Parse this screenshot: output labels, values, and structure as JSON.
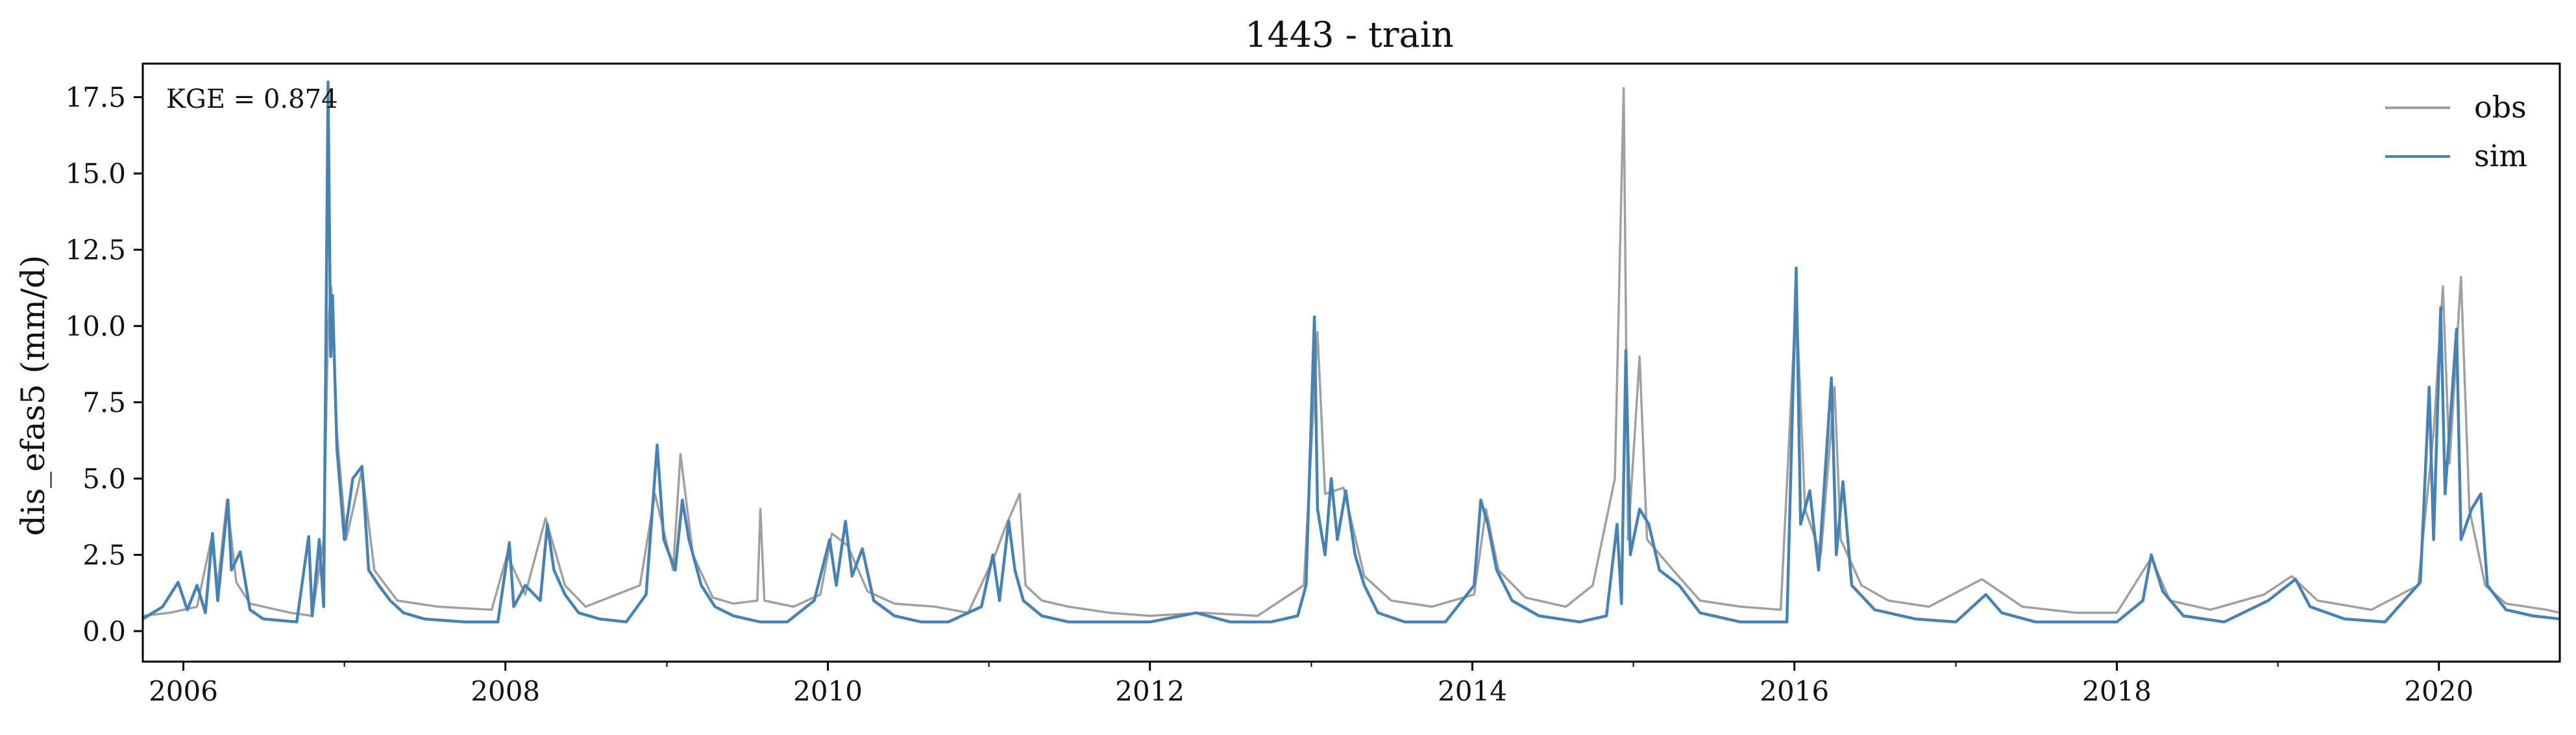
{
  "chart_data": {
    "type": "line",
    "title": "1443 - train",
    "xlabel": "",
    "ylabel": "dis_efas5 (mm/d)",
    "annotation": "KGE = 0.874",
    "xlim": [
      "2005-10-01",
      "2020-10-01"
    ],
    "ylim": [
      -1.0,
      18.6
    ],
    "x_ticks": [
      "2006",
      "2008",
      "2010",
      "2012",
      "2014",
      "2016",
      "2018",
      "2020"
    ],
    "y_ticks": [
      "0.0",
      "2.5",
      "5.0",
      "7.5",
      "10.0",
      "12.5",
      "15.0",
      "17.5"
    ],
    "grid": false,
    "legend_position": "top-right",
    "colors": {
      "obs": "#a0a0a0",
      "sim": "#4682b4"
    },
    "series": [
      {
        "name": "obs",
        "points": [
          [
            "2005-10-01",
            0.5
          ],
          [
            "2005-12-01",
            0.6
          ],
          [
            "2006-02-01",
            0.8
          ],
          [
            "2006-03-05",
            3.0
          ],
          [
            "2006-03-20",
            1.5
          ],
          [
            "2006-04-10",
            4.3
          ],
          [
            "2006-05-01",
            1.6
          ],
          [
            "2006-06-01",
            0.9
          ],
          [
            "2006-09-01",
            0.6
          ],
          [
            "2006-10-20",
            0.5
          ],
          [
            "2006-11-15",
            3.0
          ],
          [
            "2006-11-25",
            10.0
          ],
          [
            "2006-12-02",
            11.3
          ],
          [
            "2006-12-15",
            6.5
          ],
          [
            "2007-01-05",
            3.0
          ],
          [
            "2007-02-10",
            5.3
          ],
          [
            "2007-03-10",
            2.0
          ],
          [
            "2007-05-01",
            1.0
          ],
          [
            "2007-08-01",
            0.8
          ],
          [
            "2007-12-01",
            0.7
          ],
          [
            "2008-01-05",
            2.5
          ],
          [
            "2008-02-15",
            1.2
          ],
          [
            "2008-04-01",
            3.7
          ],
          [
            "2008-05-15",
            1.5
          ],
          [
            "2008-07-01",
            0.8
          ],
          [
            "2008-11-01",
            1.5
          ],
          [
            "2008-12-05",
            4.5
          ],
          [
            "2009-01-15",
            2.0
          ],
          [
            "2009-02-01",
            5.8
          ],
          [
            "2009-03-01",
            2.5
          ],
          [
            "2009-04-15",
            1.1
          ],
          [
            "2009-06-01",
            0.9
          ],
          [
            "2009-07-25",
            1.0
          ],
          [
            "2009-08-01",
            4.0
          ],
          [
            "2009-08-10",
            1.0
          ],
          [
            "2009-10-15",
            0.8
          ],
          [
            "2009-12-15",
            1.2
          ],
          [
            "2010-01-10",
            3.2
          ],
          [
            "2010-02-15",
            2.8
          ],
          [
            "2010-04-01",
            1.3
          ],
          [
            "2010-06-01",
            0.9
          ],
          [
            "2010-09-01",
            0.8
          ],
          [
            "2010-11-15",
            0.6
          ],
          [
            "2011-01-15",
            2.5
          ],
          [
            "2011-02-10",
            3.5
          ],
          [
            "2011-03-12",
            4.5
          ],
          [
            "2011-03-25",
            1.5
          ],
          [
            "2011-05-01",
            1.0
          ],
          [
            "2011-07-01",
            0.8
          ],
          [
            "2011-10-01",
            0.6
          ],
          [
            "2012-01-01",
            0.5
          ],
          [
            "2012-05-01",
            0.6
          ],
          [
            "2012-09-01",
            0.5
          ],
          [
            "2012-12-15",
            1.5
          ],
          [
            "2013-01-15",
            9.8
          ],
          [
            "2013-02-01",
            4.5
          ],
          [
            "2013-03-15",
            4.7
          ],
          [
            "2013-05-01",
            1.8
          ],
          [
            "2013-07-01",
            1.0
          ],
          [
            "2013-10-01",
            0.8
          ],
          [
            "2014-01-05",
            1.2
          ],
          [
            "2014-02-01",
            4.0
          ],
          [
            "2014-03-01",
            2.0
          ],
          [
            "2014-05-01",
            1.1
          ],
          [
            "2014-08-01",
            0.8
          ],
          [
            "2014-10-01",
            1.5
          ],
          [
            "2014-11-20",
            5.0
          ],
          [
            "2014-12-10",
            17.8
          ],
          [
            "2014-12-20",
            3.0
          ],
          [
            "2015-01-15",
            9.0
          ],
          [
            "2015-02-01",
            3.0
          ],
          [
            "2015-04-01",
            2.0
          ],
          [
            "2015-06-01",
            1.0
          ],
          [
            "2015-09-01",
            0.8
          ],
          [
            "2015-12-01",
            0.7
          ],
          [
            "2016-01-05",
            11.0
          ],
          [
            "2016-01-25",
            4.0
          ],
          [
            "2016-03-01",
            2.5
          ],
          [
            "2016-04-01",
            8.0
          ],
          [
            "2016-04-15",
            3.0
          ],
          [
            "2016-06-01",
            1.5
          ],
          [
            "2016-08-01",
            1.0
          ],
          [
            "2016-11-01",
            0.8
          ],
          [
            "2017-03-01",
            1.7
          ],
          [
            "2017-06-01",
            0.8
          ],
          [
            "2017-10-01",
            0.6
          ],
          [
            "2018-01-01",
            0.6
          ],
          [
            "2018-03-20",
            2.4
          ],
          [
            "2018-05-01",
            1.0
          ],
          [
            "2018-08-01",
            0.7
          ],
          [
            "2018-12-01",
            1.2
          ],
          [
            "2019-02-01",
            1.8
          ],
          [
            "2019-04-01",
            1.0
          ],
          [
            "2019-08-01",
            0.7
          ],
          [
            "2019-11-15",
            1.5
          ],
          [
            "2019-12-20",
            6.5
          ],
          [
            "2020-01-10",
            11.3
          ],
          [
            "2020-01-25",
            5.5
          ],
          [
            "2020-02-20",
            11.6
          ],
          [
            "2020-03-10",
            4.0
          ],
          [
            "2020-04-15",
            1.5
          ],
          [
            "2020-06-01",
            0.9
          ],
          [
            "2020-09-01",
            0.7
          ],
          [
            "2020-10-01",
            0.6
          ]
        ]
      },
      {
        "name": "sim",
        "points": [
          [
            "2005-10-01",
            0.4
          ],
          [
            "2005-11-15",
            0.8
          ],
          [
            "2005-12-20",
            1.6
          ],
          [
            "2006-01-10",
            0.7
          ],
          [
            "2006-02-01",
            1.5
          ],
          [
            "2006-02-20",
            0.6
          ],
          [
            "2006-03-08",
            3.2
          ],
          [
            "2006-03-20",
            1.0
          ],
          [
            "2006-04-12",
            4.3
          ],
          [
            "2006-04-20",
            2.0
          ],
          [
            "2006-05-10",
            2.6
          ],
          [
            "2006-06-01",
            0.7
          ],
          [
            "2006-07-01",
            0.4
          ],
          [
            "2006-09-15",
            0.3
          ],
          [
            "2006-10-12",
            3.1
          ],
          [
            "2006-10-20",
            0.5
          ],
          [
            "2006-11-05",
            3.0
          ],
          [
            "2006-11-15",
            0.8
          ],
          [
            "2006-11-25",
            18.0
          ],
          [
            "2006-12-01",
            9.0
          ],
          [
            "2006-12-05",
            11.0
          ],
          [
            "2006-12-15",
            6.0
          ],
          [
            "2007-01-01",
            3.0
          ],
          [
            "2007-01-20",
            5.0
          ],
          [
            "2007-02-10",
            5.4
          ],
          [
            "2007-02-25",
            2.0
          ],
          [
            "2007-03-20",
            1.5
          ],
          [
            "2007-04-15",
            1.0
          ],
          [
            "2007-05-15",
            0.6
          ],
          [
            "2007-07-01",
            0.4
          ],
          [
            "2007-10-01",
            0.3
          ],
          [
            "2007-12-15",
            0.3
          ],
          [
            "2008-01-10",
            2.9
          ],
          [
            "2008-01-20",
            0.8
          ],
          [
            "2008-02-15",
            1.5
          ],
          [
            "2008-03-20",
            1.0
          ],
          [
            "2008-04-05",
            3.5
          ],
          [
            "2008-04-20",
            2.0
          ],
          [
            "2008-05-15",
            1.2
          ],
          [
            "2008-06-15",
            0.6
          ],
          [
            "2008-08-01",
            0.4
          ],
          [
            "2008-10-01",
            0.3
          ],
          [
            "2008-11-15",
            1.2
          ],
          [
            "2008-12-10",
            6.1
          ],
          [
            "2008-12-25",
            3.0
          ],
          [
            "2009-01-20",
            2.0
          ],
          [
            "2009-02-05",
            4.3
          ],
          [
            "2009-02-20",
            3.0
          ],
          [
            "2009-03-20",
            1.5
          ],
          [
            "2009-04-20",
            0.8
          ],
          [
            "2009-06-01",
            0.5
          ],
          [
            "2009-08-01",
            0.3
          ],
          [
            "2009-10-01",
            0.3
          ],
          [
            "2009-12-01",
            1.0
          ],
          [
            "2010-01-05",
            3.0
          ],
          [
            "2010-01-20",
            1.5
          ],
          [
            "2010-02-10",
            3.6
          ],
          [
            "2010-02-25",
            1.8
          ],
          [
            "2010-03-20",
            2.7
          ],
          [
            "2010-04-15",
            1.0
          ],
          [
            "2010-06-01",
            0.5
          ],
          [
            "2010-08-01",
            0.3
          ],
          [
            "2010-10-01",
            0.3
          ],
          [
            "2010-12-15",
            0.8
          ],
          [
            "2011-01-10",
            2.5
          ],
          [
            "2011-01-25",
            1.0
          ],
          [
            "2011-02-15",
            3.6
          ],
          [
            "2011-03-01",
            2.0
          ],
          [
            "2011-03-20",
            1.0
          ],
          [
            "2011-05-01",
            0.5
          ],
          [
            "2011-07-01",
            0.3
          ],
          [
            "2011-10-01",
            0.3
          ],
          [
            "2012-01-01",
            0.3
          ],
          [
            "2012-04-15",
            0.6
          ],
          [
            "2012-07-01",
            0.3
          ],
          [
            "2012-10-01",
            0.3
          ],
          [
            "2012-12-01",
            0.5
          ],
          [
            "2012-12-20",
            1.5
          ],
          [
            "2013-01-08",
            10.3
          ],
          [
            "2013-01-15",
            4.0
          ],
          [
            "2013-02-01",
            2.5
          ],
          [
            "2013-02-15",
            5.0
          ],
          [
            "2013-03-01",
            3.0
          ],
          [
            "2013-03-20",
            4.6
          ],
          [
            "2013-04-10",
            2.5
          ],
          [
            "2013-05-01",
            1.5
          ],
          [
            "2013-06-01",
            0.6
          ],
          [
            "2013-08-01",
            0.3
          ],
          [
            "2013-11-01",
            0.3
          ],
          [
            "2014-01-05",
            1.5
          ],
          [
            "2014-01-20",
            4.3
          ],
          [
            "2014-02-05",
            3.5
          ],
          [
            "2014-02-25",
            2.0
          ],
          [
            "2014-04-01",
            1.0
          ],
          [
            "2014-06-01",
            0.5
          ],
          [
            "2014-09-01",
            0.3
          ],
          [
            "2014-11-01",
            0.5
          ],
          [
            "2014-11-25",
            3.5
          ],
          [
            "2014-12-05",
            0.9
          ],
          [
            "2014-12-15",
            9.2
          ],
          [
            "2014-12-25",
            2.5
          ],
          [
            "2015-01-15",
            4.0
          ],
          [
            "2015-02-05",
            3.5
          ],
          [
            "2015-03-01",
            2.0
          ],
          [
            "2015-04-15",
            1.5
          ],
          [
            "2015-06-01",
            0.6
          ],
          [
            "2015-09-01",
            0.3
          ],
          [
            "2015-12-15",
            0.3
          ],
          [
            "2016-01-05",
            11.9
          ],
          [
            "2016-01-15",
            3.5
          ],
          [
            "2016-02-05",
            4.6
          ],
          [
            "2016-02-25",
            2.0
          ],
          [
            "2016-03-25",
            8.3
          ],
          [
            "2016-04-05",
            2.5
          ],
          [
            "2016-04-20",
            4.9
          ],
          [
            "2016-05-10",
            1.5
          ],
          [
            "2016-07-01",
            0.7
          ],
          [
            "2016-10-01",
            0.4
          ],
          [
            "2017-01-01",
            0.3
          ],
          [
            "2017-03-10",
            1.2
          ],
          [
            "2017-04-15",
            0.6
          ],
          [
            "2017-07-01",
            0.3
          ],
          [
            "2017-10-01",
            0.3
          ],
          [
            "2018-01-01",
            0.3
          ],
          [
            "2018-03-01",
            1.0
          ],
          [
            "2018-03-20",
            2.5
          ],
          [
            "2018-04-15",
            1.3
          ],
          [
            "2018-06-01",
            0.5
          ],
          [
            "2018-09-01",
            0.3
          ],
          [
            "2018-12-10",
            1.0
          ],
          [
            "2019-02-10",
            1.7
          ],
          [
            "2019-03-15",
            0.8
          ],
          [
            "2019-06-01",
            0.4
          ],
          [
            "2019-09-01",
            0.3
          ],
          [
            "2019-11-20",
            1.6
          ],
          [
            "2019-12-10",
            8.0
          ],
          [
            "2019-12-20",
            3.0
          ],
          [
            "2020-01-05",
            10.6
          ],
          [
            "2020-01-15",
            4.5
          ],
          [
            "2020-02-10",
            9.9
          ],
          [
            "2020-02-20",
            3.0
          ],
          [
            "2020-03-15",
            4.0
          ],
          [
            "2020-04-05",
            4.5
          ],
          [
            "2020-04-20",
            1.5
          ],
          [
            "2020-06-01",
            0.7
          ],
          [
            "2020-08-01",
            0.5
          ],
          [
            "2020-10-01",
            0.4
          ]
        ]
      }
    ]
  }
}
